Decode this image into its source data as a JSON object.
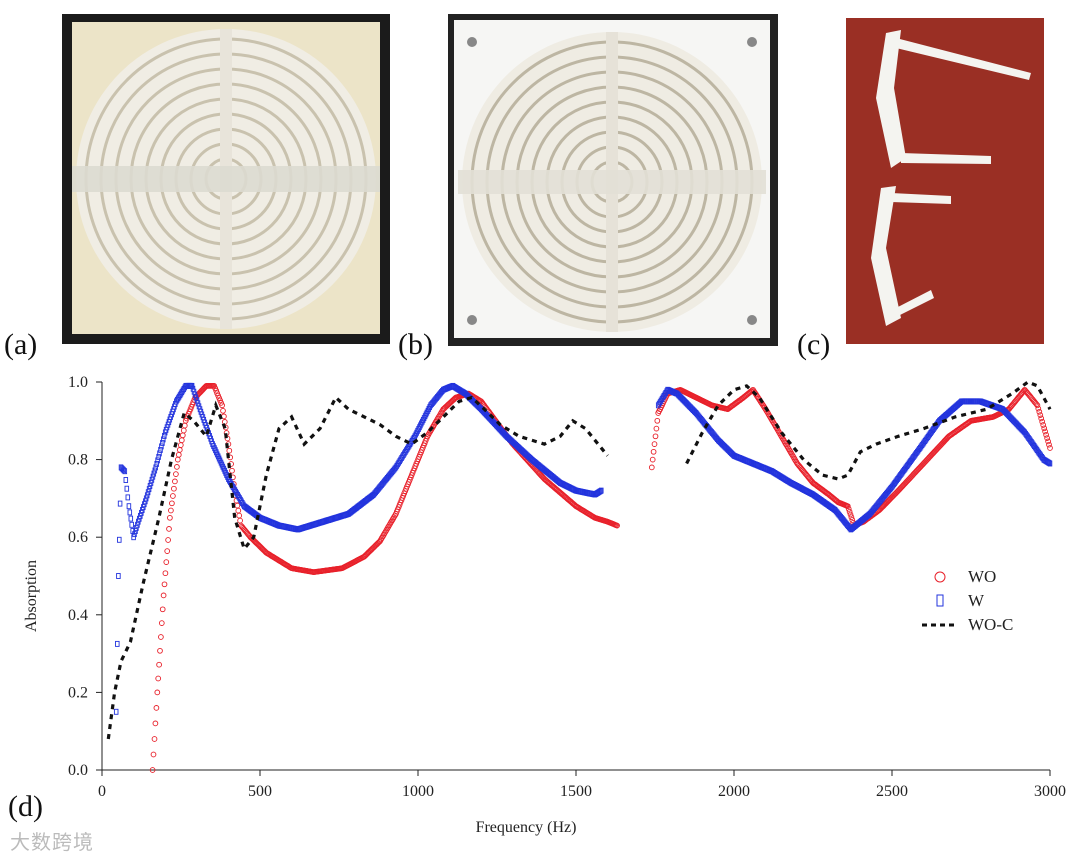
{
  "panels": [
    {
      "label": "(a)",
      "alt": "3D-printed concentric ring absorber, front view"
    },
    {
      "label": "(b)",
      "alt": "3D-printed concentric ring absorber in square frame"
    },
    {
      "label": "(c)",
      "alt": "Cross-section pieces of ring structure"
    }
  ],
  "chart_label": "(d)",
  "watermark": "大数跨境",
  "colors": {
    "WO": "#e8202a",
    "W": "#2233dd",
    "WO-C": "#111111"
  },
  "chart_data": {
    "type": "line",
    "xlabel": "Frequency (Hz)",
    "ylabel": "Absorption",
    "xlim": [
      0,
      3000
    ],
    "ylim": [
      0.0,
      1.0
    ],
    "xticks": [
      0,
      500,
      1000,
      1500,
      2000,
      2500,
      3000
    ],
    "yticks": [
      "0.0",
      "0.2",
      "0.4",
      "0.6",
      "0.8",
      "1.0"
    ],
    "legend": [
      {
        "name": "WO",
        "marker": "○"
      },
      {
        "name": "W",
        "marker": "▯"
      },
      {
        "name": "WO-C",
        "marker": "dashed"
      }
    ],
    "series": [
      {
        "name": "WO",
        "segments": [
          [
            [
              160,
              0.0
            ],
            [
              175,
              0.2
            ],
            [
              195,
              0.45
            ],
            [
              215,
              0.65
            ],
            [
              240,
              0.8
            ],
            [
              265,
              0.9
            ],
            [
              295,
              0.96
            ],
            [
              330,
              0.99
            ],
            [
              355,
              0.99
            ],
            [
              380,
              0.94
            ],
            [
              400,
              0.84
            ],
            [
              420,
              0.72
            ],
            [
              440,
              0.63
            ],
            [
              470,
              0.6
            ],
            [
              520,
              0.56
            ],
            [
              600,
              0.52
            ],
            [
              670,
              0.51
            ],
            [
              760,
              0.52
            ],
            [
              830,
              0.55
            ],
            [
              880,
              0.59
            ],
            [
              930,
              0.66
            ],
            [
              980,
              0.76
            ],
            [
              1030,
              0.86
            ],
            [
              1080,
              0.93
            ],
            [
              1120,
              0.96
            ],
            [
              1160,
              0.97
            ],
            [
              1200,
              0.95
            ],
            [
              1300,
              0.84
            ],
            [
              1400,
              0.75
            ],
            [
              1500,
              0.68
            ],
            [
              1560,
              0.65
            ],
            [
              1600,
              0.64
            ],
            [
              1630,
              0.63
            ]
          ],
          [
            [
              1740,
              0.78
            ],
            [
              1760,
              0.92
            ],
            [
              1790,
              0.97
            ],
            [
              1830,
              0.98
            ],
            [
              1880,
              0.96
            ],
            [
              1930,
              0.94
            ],
            [
              1980,
              0.93
            ],
            [
              2030,
              0.96
            ],
            [
              2060,
              0.98
            ],
            [
              2100,
              0.93
            ],
            [
              2150,
              0.86
            ],
            [
              2200,
              0.79
            ],
            [
              2250,
              0.74
            ],
            [
              2300,
              0.71
            ],
            [
              2330,
              0.69
            ],
            [
              2360,
              0.68
            ],
            [
              2380,
              0.63
            ],
            [
              2410,
              0.64
            ],
            [
              2460,
              0.67
            ],
            [
              2520,
              0.72
            ],
            [
              2600,
              0.79
            ],
            [
              2680,
              0.86
            ],
            [
              2750,
              0.9
            ],
            [
              2820,
              0.91
            ],
            [
              2870,
              0.93
            ],
            [
              2920,
              0.98
            ],
            [
              2960,
              0.94
            ],
            [
              3000,
              0.83
            ]
          ]
        ]
      },
      {
        "name": "W",
        "segments": [
          [
            [
              45,
              0.15
            ],
            [
              52,
              0.5
            ],
            [
              60,
              0.78
            ],
            [
              72,
              0.77
            ],
            [
              85,
              0.68
            ],
            [
              100,
              0.6
            ],
            [
              115,
              0.64
            ],
            [
              140,
              0.7
            ],
            [
              170,
              0.78
            ],
            [
              200,
              0.87
            ],
            [
              235,
              0.95
            ],
            [
              265,
              0.99
            ],
            [
              285,
              0.99
            ],
            [
              310,
              0.93
            ],
            [
              350,
              0.84
            ],
            [
              400,
              0.75
            ],
            [
              450,
              0.68
            ],
            [
              500,
              0.65
            ],
            [
              560,
              0.63
            ],
            [
              620,
              0.62
            ],
            [
              700,
              0.64
            ],
            [
              780,
              0.66
            ],
            [
              860,
              0.71
            ],
            [
              930,
              0.78
            ],
            [
              990,
              0.86
            ],
            [
              1040,
              0.94
            ],
            [
              1080,
              0.98
            ],
            [
              1110,
              0.99
            ],
            [
              1150,
              0.97
            ],
            [
              1200,
              0.93
            ],
            [
              1280,
              0.86
            ],
            [
              1360,
              0.8
            ],
            [
              1450,
              0.74
            ],
            [
              1500,
              0.72
            ],
            [
              1560,
              0.71
            ],
            [
              1580,
              0.72
            ]
          ],
          [
            [
              1760,
              0.94
            ],
            [
              1790,
              0.98
            ],
            [
              1820,
              0.97
            ],
            [
              1880,
              0.92
            ],
            [
              1950,
              0.85
            ],
            [
              2000,
              0.81
            ],
            [
              2060,
              0.79
            ],
            [
              2120,
              0.77
            ],
            [
              2180,
              0.74
            ],
            [
              2250,
              0.71
            ],
            [
              2320,
              0.67
            ],
            [
              2370,
              0.62
            ],
            [
              2430,
              0.66
            ],
            [
              2500,
              0.73
            ],
            [
              2580,
              0.82
            ],
            [
              2650,
              0.9
            ],
            [
              2720,
              0.95
            ],
            [
              2780,
              0.95
            ],
            [
              2850,
              0.93
            ],
            [
              2920,
              0.87
            ],
            [
              2980,
              0.8
            ],
            [
              3000,
              0.79
            ]
          ]
        ]
      },
      {
        "name": "WO-C",
        "segments": [
          [
            [
              20,
              0.08
            ],
            [
              40,
              0.2
            ],
            [
              60,
              0.28
            ],
            [
              90,
              0.33
            ],
            [
              130,
              0.48
            ],
            [
              180,
              0.65
            ],
            [
              220,
              0.8
            ],
            [
              260,
              0.92
            ],
            [
              290,
              0.9
            ],
            [
              330,
              0.86
            ],
            [
              360,
              0.94
            ],
            [
              390,
              0.88
            ],
            [
              420,
              0.65
            ],
            [
              450,
              0.57
            ],
            [
              480,
              0.6
            ],
            [
              520,
              0.76
            ],
            [
              560,
              0.88
            ],
            [
              600,
              0.91
            ],
            [
              640,
              0.84
            ],
            [
              690,
              0.88
            ],
            [
              740,
              0.96
            ],
            [
              780,
              0.93
            ],
            [
              830,
              0.91
            ],
            [
              880,
              0.89
            ],
            [
              930,
              0.86
            ],
            [
              980,
              0.84
            ],
            [
              1030,
              0.87
            ],
            [
              1080,
              0.91
            ],
            [
              1130,
              0.95
            ],
            [
              1170,
              0.96
            ],
            [
              1210,
              0.93
            ],
            [
              1260,
              0.89
            ],
            [
              1320,
              0.86
            ],
            [
              1400,
              0.84
            ],
            [
              1450,
              0.86
            ],
            [
              1490,
              0.9
            ],
            [
              1530,
              0.88
            ],
            [
              1570,
              0.84
            ],
            [
              1600,
              0.81
            ]
          ],
          [
            [
              1850,
              0.79
            ],
            [
              1900,
              0.87
            ],
            [
              1950,
              0.94
            ],
            [
              2000,
              0.98
            ],
            [
              2040,
              0.99
            ],
            [
              2080,
              0.96
            ],
            [
              2150,
              0.87
            ],
            [
              2220,
              0.8
            ],
            [
              2280,
              0.76
            ],
            [
              2330,
              0.75
            ],
            [
              2360,
              0.76
            ],
            [
              2400,
              0.82
            ],
            [
              2450,
              0.84
            ],
            [
              2520,
              0.86
            ],
            [
              2600,
              0.88
            ],
            [
              2700,
              0.91
            ],
            [
              2800,
              0.93
            ],
            [
              2880,
              0.97
            ],
            [
              2930,
              1.0
            ],
            [
              2960,
              0.99
            ],
            [
              3000,
              0.93
            ]
          ]
        ]
      }
    ]
  }
}
